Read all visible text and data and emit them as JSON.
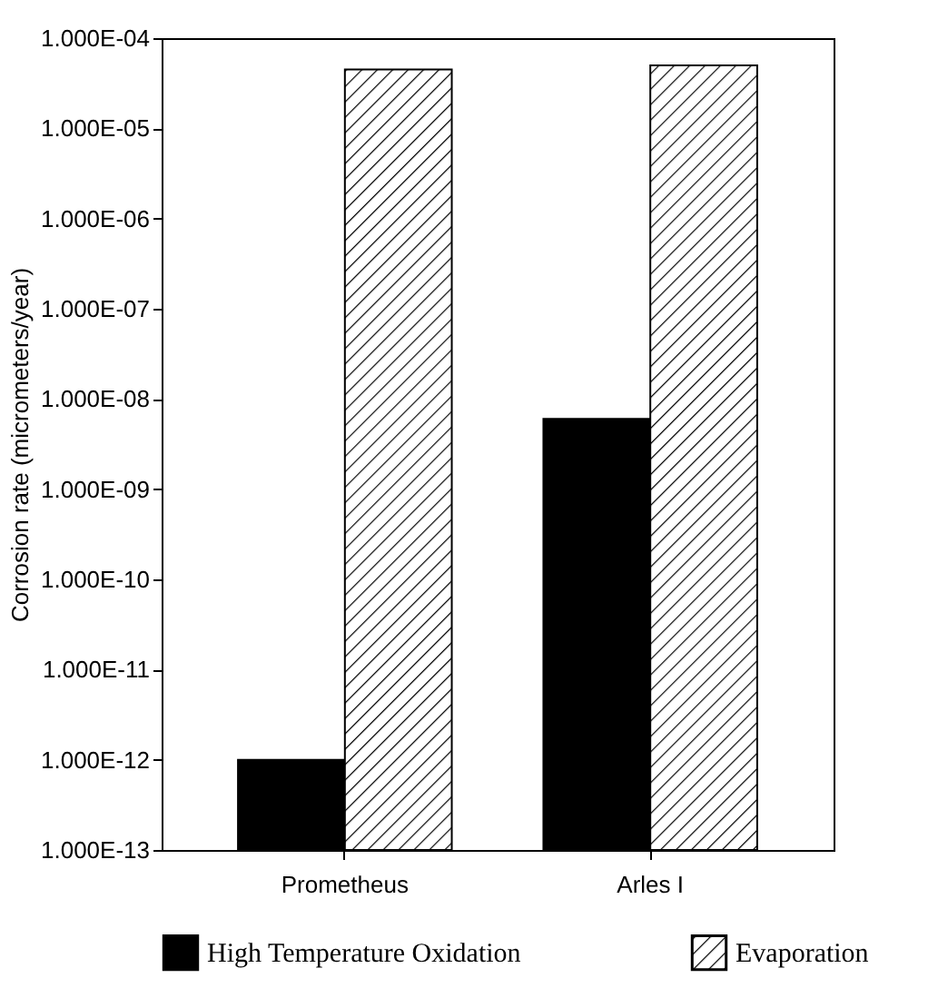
{
  "chart_data": {
    "type": "bar",
    "ylabel": "Corrosion rate (micrometers/year)",
    "categories": [
      "Prometheus",
      "Arles I"
    ],
    "series": [
      {
        "name": "High Temperature Oxidation",
        "color": "#000000",
        "values": [
          1e-12,
          6e-09
        ]
      },
      {
        "name": "Evaporation",
        "color": "#000000",
        "values": [
          4.5e-05,
          5e-05
        ]
      }
    ],
    "log": true,
    "ylim": [
      1e-13,
      0.0001
    ],
    "yticks": [
      {
        "value": 1e-13,
        "label": "1.000E-13"
      },
      {
        "value": 1e-12,
        "label": "1.000E-12"
      },
      {
        "value": 1e-11,
        "label": "1.000E-11"
      },
      {
        "value": 1e-10,
        "label": "1.000E-10"
      },
      {
        "value": 1e-09,
        "label": "1.000E-09"
      },
      {
        "value": 1e-08,
        "label": "1.000E-08"
      },
      {
        "value": 1e-07,
        "label": "1.000E-07"
      },
      {
        "value": 1e-06,
        "label": "1.000E-06"
      },
      {
        "value": 1e-05,
        "label": "1.000E-05"
      },
      {
        "value": 0.0001,
        "label": "1.000E-04"
      }
    ],
    "legend": "bottom",
    "grid": false
  }
}
